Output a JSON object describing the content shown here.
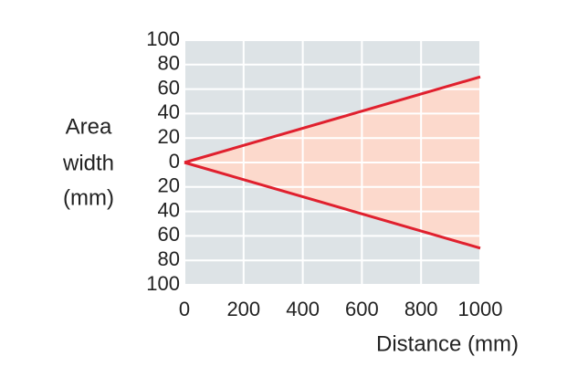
{
  "chart_data": {
    "type": "line",
    "ylabel": [
      "Area",
      "width",
      "(mm)"
    ],
    "xlabel": "Distance (mm)",
    "x": [
      0,
      1000
    ],
    "series": [
      {
        "color": "#e0202e",
        "values": [
          0,
          70
        ]
      },
      {
        "color": "#e0202e",
        "values": [
          0,
          -70
        ]
      }
    ],
    "fill_color": "#fcd9cc",
    "background": "#dde3e6",
    "xlim": [
      0,
      1000
    ],
    "xticks": [
      0,
      200,
      400,
      600,
      800,
      1000
    ],
    "ylim": [
      -100,
      100
    ],
    "yticks": [
      {
        "value": -100,
        "label": "100"
      },
      {
        "value": -80,
        "label": "80"
      },
      {
        "value": -60,
        "label": "60"
      },
      {
        "value": -40,
        "label": "40"
      },
      {
        "value": -20,
        "label": "20"
      },
      0,
      20,
      40,
      60,
      80,
      100
    ],
    "grid": true
  }
}
